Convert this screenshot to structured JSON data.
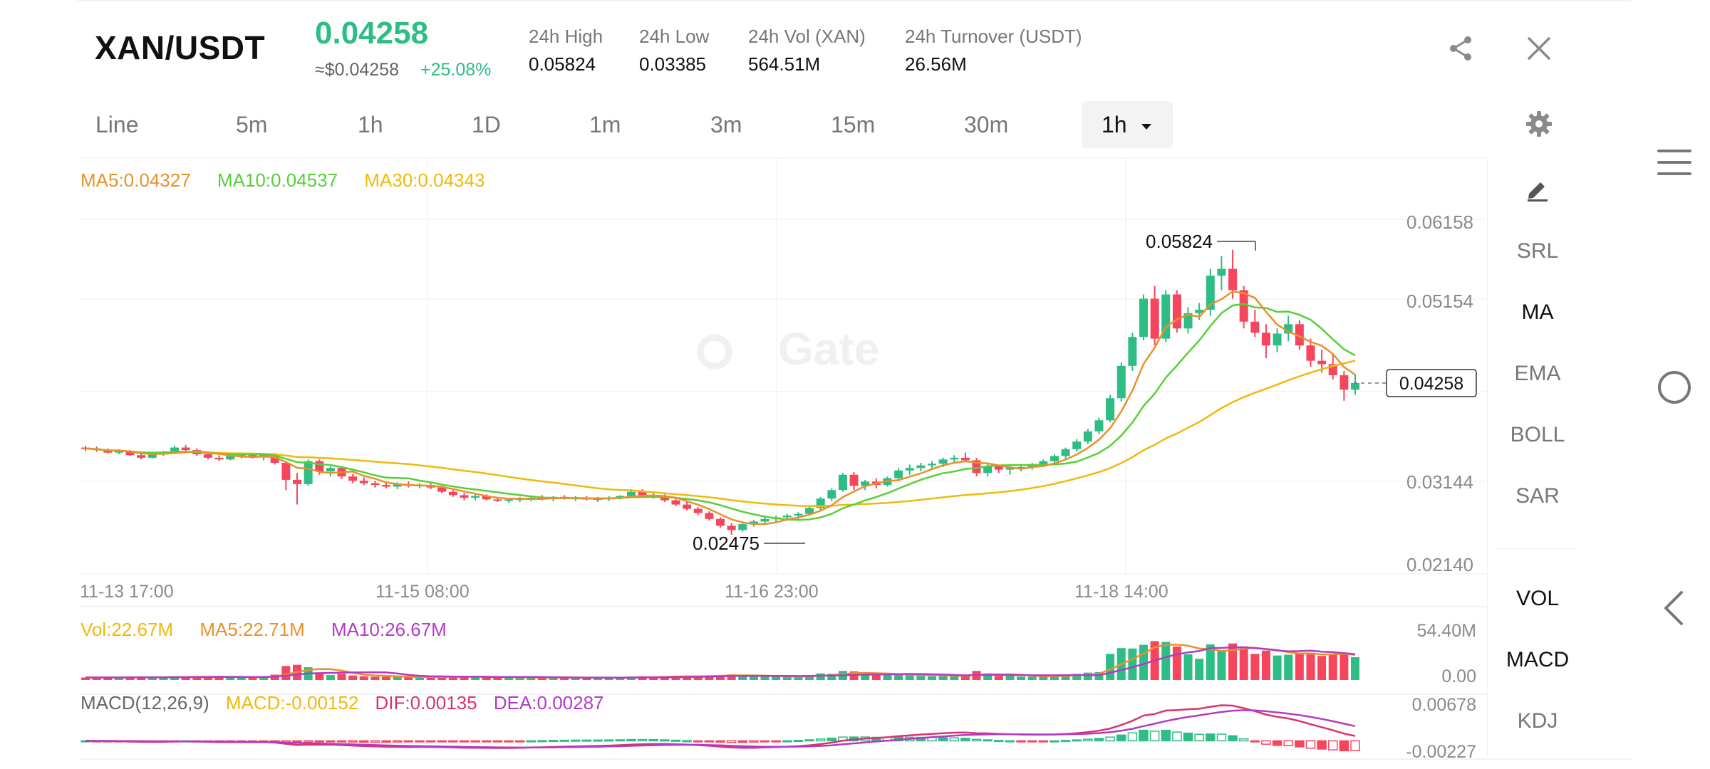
{
  "header": {
    "pair": "XAN/USDT",
    "price": "0.04258",
    "usd_price": "≈$0.04258",
    "change": "+25.08%",
    "stats": [
      {
        "label": "24h High",
        "value": "0.05824"
      },
      {
        "label": "24h Low",
        "value": "0.03385"
      },
      {
        "label": "24h Vol (XAN)",
        "value": "564.51M"
      },
      {
        "label": "24h Turnover (USDT)",
        "value": "26.56M"
      }
    ],
    "share_icon": "share-icon",
    "close_icon": "close-icon"
  },
  "timeframes": {
    "items": [
      "Line",
      "5m",
      "1h",
      "1D",
      "1m",
      "3m",
      "15m",
      "30m"
    ],
    "selected": "1h",
    "settings_icon": "gear-icon"
  },
  "indicators": {
    "main": [
      {
        "text": "MA5:0.04327",
        "color": "#e8912b"
      },
      {
        "text": "MA10:0.04537",
        "color": "#56d038"
      },
      {
        "text": "MA30:0.04343",
        "color": "#f0b90b"
      }
    ],
    "vol": [
      {
        "text": "Vol:22.67M",
        "color": "#f0b90b"
      },
      {
        "text": "MA5:22.71M",
        "color": "#e8912b"
      },
      {
        "text": "MA10:26.67M",
        "color": "#b23bc5"
      }
    ],
    "macd": [
      {
        "text": "MACD(12,26,9)",
        "color": "#666666"
      },
      {
        "text": "MACD:-0.00152",
        "color": "#f0b90b"
      },
      {
        "text": "DIF:0.00135",
        "color": "#d9336e"
      },
      {
        "text": "DEA:0.00287",
        "color": "#b23bc5"
      }
    ]
  },
  "side_menu": {
    "draw_icon": "pencil-icon",
    "main_items": [
      {
        "label": "SRL",
        "active": false
      },
      {
        "label": "MA",
        "active": true
      },
      {
        "label": "EMA",
        "active": false
      },
      {
        "label": "BOLL",
        "active": false
      },
      {
        "label": "SAR",
        "active": false
      }
    ],
    "sub_items": [
      {
        "label": "VOL",
        "active": true
      },
      {
        "label": "MACD",
        "active": true
      },
      {
        "label": "KDJ",
        "active": false
      }
    ]
  },
  "watermark": "Gate",
  "nav": {
    "menu_icon": "menu-icon",
    "home_icon": "home-circle-icon",
    "back_icon": "back-chevron-icon"
  },
  "chart_data": {
    "type": "candlestick",
    "y_axis_labels": [
      "0.06158",
      "0.05154",
      "0.03144",
      "0.02140"
    ],
    "ylim": [
      0.0214,
      0.06158
    ],
    "x_tick_labels": [
      "11-13 17:00",
      "11-15 08:00",
      "11-16 23:00",
      "11-18 14:00"
    ],
    "current_price_label": "0.04258",
    "high_marker": "0.05824",
    "low_marker": "0.02475",
    "candles": [
      [
        0.035,
        0.0352,
        0.0346,
        0.0349
      ],
      [
        0.0349,
        0.0351,
        0.0345,
        0.0347
      ],
      [
        0.0347,
        0.0349,
        0.0343,
        0.0344
      ],
      [
        0.0344,
        0.0348,
        0.0342,
        0.0346
      ],
      [
        0.0346,
        0.0347,
        0.034,
        0.0341
      ],
      [
        0.0341,
        0.0344,
        0.0336,
        0.0338
      ],
      [
        0.0338,
        0.0344,
        0.0337,
        0.0343
      ],
      [
        0.0343,
        0.0346,
        0.034,
        0.0345
      ],
      [
        0.0345,
        0.0352,
        0.0344,
        0.035
      ],
      [
        0.035,
        0.0353,
        0.0345,
        0.0347
      ],
      [
        0.0347,
        0.0349,
        0.034,
        0.0342
      ],
      [
        0.0342,
        0.0344,
        0.0336,
        0.0338
      ],
      [
        0.0338,
        0.0341,
        0.0334,
        0.0336
      ],
      [
        0.0336,
        0.0342,
        0.0335,
        0.034
      ],
      [
        0.034,
        0.0344,
        0.0337,
        0.0341
      ],
      [
        0.0341,
        0.0343,
        0.0337,
        0.0339
      ],
      [
        0.0339,
        0.0342,
        0.0335,
        0.0341
      ],
      [
        0.0341,
        0.0343,
        0.033,
        0.0332
      ],
      [
        0.0332,
        0.0334,
        0.03,
        0.0312
      ],
      [
        0.0312,
        0.032,
        0.0283,
        0.0307
      ],
      [
        0.0307,
        0.0336,
        0.0305,
        0.0334
      ],
      [
        0.0334,
        0.0336,
        0.0318,
        0.0322
      ],
      [
        0.0322,
        0.0328,
        0.0316,
        0.0326
      ],
      [
        0.0326,
        0.0328,
        0.0313,
        0.0316
      ],
      [
        0.0316,
        0.0319,
        0.0308,
        0.0311
      ],
      [
        0.0311,
        0.0315,
        0.0306,
        0.0308
      ],
      [
        0.0308,
        0.0311,
        0.0303,
        0.0306
      ],
      [
        0.0306,
        0.031,
        0.0302,
        0.0304
      ],
      [
        0.0304,
        0.0309,
        0.0301,
        0.0307
      ],
      [
        0.0307,
        0.031,
        0.0303,
        0.0305
      ],
      [
        0.0305,
        0.0308,
        0.0302,
        0.0306
      ],
      [
        0.0306,
        0.0308,
        0.0301,
        0.0303
      ],
      [
        0.0303,
        0.0305,
        0.0296,
        0.0298
      ],
      [
        0.0298,
        0.0301,
        0.0292,
        0.0294
      ],
      [
        0.0294,
        0.0297,
        0.0288,
        0.0291
      ],
      [
        0.0291,
        0.0295,
        0.0288,
        0.0293
      ],
      [
        0.0293,
        0.0295,
        0.0288,
        0.0289
      ],
      [
        0.0289,
        0.0292,
        0.0286,
        0.0288
      ],
      [
        0.0288,
        0.0291,
        0.0285,
        0.0289
      ],
      [
        0.0289,
        0.0292,
        0.0286,
        0.029
      ],
      [
        0.029,
        0.0293,
        0.0287,
        0.0291
      ],
      [
        0.0291,
        0.0294,
        0.0288,
        0.029
      ],
      [
        0.029,
        0.0293,
        0.0287,
        0.0292
      ],
      [
        0.0292,
        0.0294,
        0.0289,
        0.029
      ],
      [
        0.029,
        0.0293,
        0.0287,
        0.0291
      ],
      [
        0.0291,
        0.0293,
        0.0288,
        0.0289
      ],
      [
        0.0289,
        0.0292,
        0.0286,
        0.029
      ],
      [
        0.029,
        0.0293,
        0.0287,
        0.0291
      ],
      [
        0.0291,
        0.0294,
        0.0289,
        0.0293
      ],
      [
        0.0293,
        0.03,
        0.0292,
        0.0298
      ],
      [
        0.0298,
        0.0301,
        0.0292,
        0.0294
      ],
      [
        0.0294,
        0.0297,
        0.029,
        0.0292
      ],
      [
        0.0292,
        0.0295,
        0.0286,
        0.0288
      ],
      [
        0.0288,
        0.029,
        0.0281,
        0.0283
      ],
      [
        0.0283,
        0.0286,
        0.0276,
        0.0278
      ],
      [
        0.0278,
        0.028,
        0.0271,
        0.0273
      ],
      [
        0.0273,
        0.0275,
        0.0264,
        0.0266
      ],
      [
        0.0266,
        0.0268,
        0.0256,
        0.0258
      ],
      [
        0.0258,
        0.0261,
        0.02475,
        0.0253
      ],
      [
        0.0253,
        0.0262,
        0.0251,
        0.026
      ],
      [
        0.026,
        0.0265,
        0.0257,
        0.0263
      ],
      [
        0.0263,
        0.0268,
        0.026,
        0.0266
      ],
      [
        0.0266,
        0.027,
        0.0262,
        0.0268
      ],
      [
        0.0268,
        0.0272,
        0.0264,
        0.027
      ],
      [
        0.027,
        0.0274,
        0.0266,
        0.0272
      ],
      [
        0.0272,
        0.0281,
        0.027,
        0.0279
      ],
      [
        0.0279,
        0.0292,
        0.0276,
        0.029
      ],
      [
        0.029,
        0.0302,
        0.0287,
        0.03
      ],
      [
        0.03,
        0.032,
        0.0298,
        0.0318
      ],
      [
        0.0318,
        0.0321,
        0.03,
        0.0305
      ],
      [
        0.0305,
        0.0312,
        0.03,
        0.031
      ],
      [
        0.031,
        0.0314,
        0.0302,
        0.0306
      ],
      [
        0.0306,
        0.0316,
        0.0304,
        0.0314
      ],
      [
        0.0314,
        0.0326,
        0.0312,
        0.0323
      ],
      [
        0.0323,
        0.033,
        0.0318,
        0.0326
      ],
      [
        0.0326,
        0.0332,
        0.0322,
        0.0329
      ],
      [
        0.0329,
        0.0334,
        0.0325,
        0.0331
      ],
      [
        0.0331,
        0.0338,
        0.0327,
        0.0336
      ],
      [
        0.0336,
        0.0341,
        0.0331,
        0.0338
      ],
      [
        0.0338,
        0.0344,
        0.0333,
        0.0335
      ],
      [
        0.0335,
        0.0338,
        0.0316,
        0.032
      ],
      [
        0.032,
        0.0332,
        0.0316,
        0.0328
      ],
      [
        0.0328,
        0.033,
        0.032,
        0.0324
      ],
      [
        0.0324,
        0.0328,
        0.0318,
        0.0326
      ],
      [
        0.0326,
        0.033,
        0.0322,
        0.0327
      ],
      [
        0.0327,
        0.0332,
        0.0324,
        0.033
      ],
      [
        0.033,
        0.0336,
        0.0327,
        0.0334
      ],
      [
        0.0334,
        0.0342,
        0.0331,
        0.034
      ],
      [
        0.034,
        0.035,
        0.0337,
        0.0348
      ],
      [
        0.0348,
        0.036,
        0.0345,
        0.0357
      ],
      [
        0.0357,
        0.0372,
        0.0354,
        0.0369
      ],
      [
        0.0369,
        0.0385,
        0.0366,
        0.0382
      ],
      [
        0.0382,
        0.0412,
        0.038,
        0.0408
      ],
      [
        0.0408,
        0.045,
        0.0404,
        0.0446
      ],
      [
        0.0446,
        0.0485,
        0.044,
        0.048
      ],
      [
        0.048,
        0.053,
        0.0476,
        0.0525
      ],
      [
        0.0525,
        0.054,
        0.047,
        0.0478
      ],
      [
        0.0478,
        0.0535,
        0.0474,
        0.053
      ],
      [
        0.053,
        0.0535,
        0.0485,
        0.049
      ],
      [
        0.049,
        0.0515,
        0.0484,
        0.0508
      ],
      [
        0.0508,
        0.052,
        0.05,
        0.0512
      ],
      [
        0.0512,
        0.056,
        0.0505,
        0.0552
      ],
      [
        0.0552,
        0.0575,
        0.0535,
        0.056
      ],
      [
        0.056,
        0.05824,
        0.0525,
        0.0535
      ],
      [
        0.0535,
        0.054,
        0.049,
        0.0498
      ],
      [
        0.0498,
        0.0512,
        0.048,
        0.0485
      ],
      [
        0.0485,
        0.0495,
        0.0455,
        0.047
      ],
      [
        0.047,
        0.049,
        0.0462,
        0.0484
      ],
      [
        0.0484,
        0.0505,
        0.0475,
        0.0495
      ],
      [
        0.0495,
        0.05,
        0.0465,
        0.047
      ],
      [
        0.047,
        0.0478,
        0.0445,
        0.0452
      ],
      [
        0.0452,
        0.0465,
        0.0438,
        0.0448
      ],
      [
        0.0448,
        0.046,
        0.043,
        0.0435
      ],
      [
        0.0435,
        0.044,
        0.0405,
        0.0418
      ],
      [
        0.0418,
        0.0436,
        0.0412,
        0.04258
      ]
    ],
    "volume": {
      "ylim": [
        0,
        54.4
      ],
      "labels": [
        "54.40M",
        "0.00"
      ]
    },
    "macd": {
      "ylim": [
        -0.00227,
        0.00678
      ],
      "labels": [
        "0.00678",
        "-0.00227"
      ]
    }
  },
  "colors": {
    "up": "#2ebd85",
    "down": "#f6465d",
    "ma5": "#e8912b",
    "ma10": "#56d038",
    "ma30": "#f0b90b",
    "vma10": "#b23bc5",
    "dif": "#d9336e",
    "dea": "#b23bc5"
  }
}
